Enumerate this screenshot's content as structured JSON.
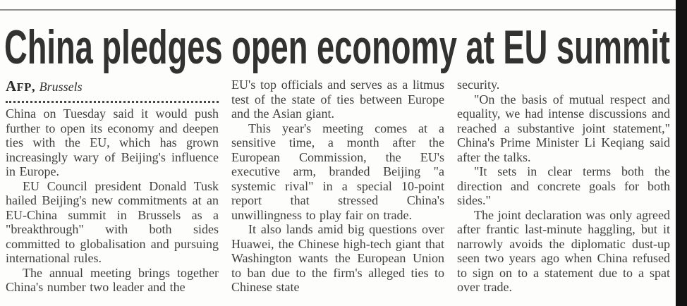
{
  "page": {
    "background": "#fdfdfc",
    "top_rule_color": "#8f8f8f",
    "edge_bar_color": "#121212",
    "headline_color": "#323232",
    "body_text_color": "#3f3f3f"
  },
  "article": {
    "headline": "China pledges open economy at EU summit",
    "byline": {
      "agency_initial": "A",
      "agency_rest": "FP",
      "separator": ",",
      "location": "Brussels"
    },
    "columns": [
      {
        "paragraphs": [
          {
            "indent": false,
            "text": "China on Tuesday said it would push further to open its economy and deepen ties with the EU, which has grown increasingly wary of Beijing's influence in Europe."
          },
          {
            "indent": true,
            "text": "EU Council president Donald Tusk hailed Beijing's new commitments at an EU-China summit in Brussels as a \"breakthrough\" with both sides committed to globalisation and pursuing international rules."
          },
          {
            "indent": true,
            "text": "The annual meeting brings together China's number two leader and the"
          }
        ]
      },
      {
        "paragraphs": [
          {
            "indent": false,
            "text": "EU's top officials and serves as a litmus test of the state of ties between Europe and the Asian giant."
          },
          {
            "indent": true,
            "text": "This year's meeting comes at a sensitive time, a month after the European Commission, the EU's executive arm, branded Beijing \"a systemic rival\" in a special 10-point report that stressed China's unwillingness to play fair on trade."
          },
          {
            "indent": true,
            "text": "It also lands amid big questions over Huawei, the Chinese high-tech giant that Washington wants the European Union to ban due to the firm's alleged ties to Chinese state"
          }
        ]
      },
      {
        "paragraphs": [
          {
            "indent": false,
            "text": "security."
          },
          {
            "indent": true,
            "text": "\"On the basis of mutual respect and equality, we had intense discussions and reached a substantive joint statement,\" China's Prime Minister Li Keqiang said after the talks."
          },
          {
            "indent": true,
            "text": "\"It sets in clear terms both the direction and concrete goals for both sides.\""
          },
          {
            "indent": true,
            "text": "The joint declaration was only agreed after frantic last-minute haggling, but it narrowly avoids the diplomatic dust-up seen two years ago when China refused to sign on to a statement due to a spat over trade."
          }
        ]
      }
    ]
  }
}
